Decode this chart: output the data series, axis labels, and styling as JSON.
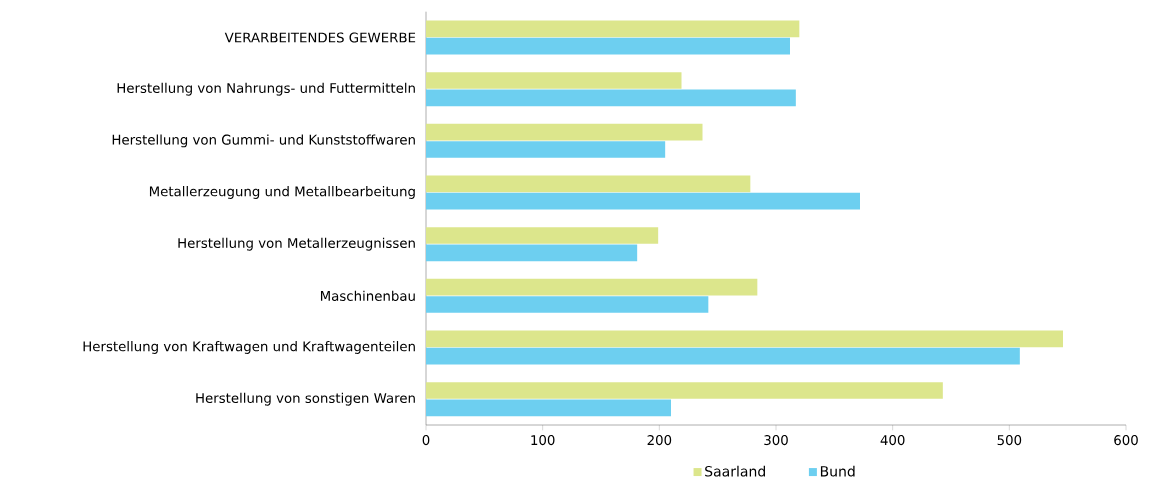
{
  "chart_data": {
    "type": "bar",
    "orientation": "horizontal",
    "categories": [
      "VERARBEITENDES GEWERBE",
      "Herstellung von Nahrungs- und Futtermitteln",
      "Herstellung von Gummi- und Kunststoffwaren",
      "Metallerzeugung und Metallbearbeitung",
      "Herstellung von Metallerzeugnissen",
      "Maschinenbau",
      "Herstellung von Kraftwagen und Kraftwagenteilen",
      "Herstellung von sonstigen Waren"
    ],
    "series": [
      {
        "name": "Saarland",
        "color": "#dce68c",
        "values": [
          320,
          219,
          237,
          278,
          199,
          284,
          546,
          443
        ]
      },
      {
        "name": "Bund",
        "color": "#6dcff0",
        "values": [
          312,
          317,
          205,
          372,
          181,
          242,
          509,
          210
        ]
      }
    ],
    "xlim": [
      0,
      600
    ],
    "xticks": [
      0,
      100,
      200,
      300,
      400,
      500,
      600
    ],
    "grid": false,
    "legend": "bottom"
  }
}
